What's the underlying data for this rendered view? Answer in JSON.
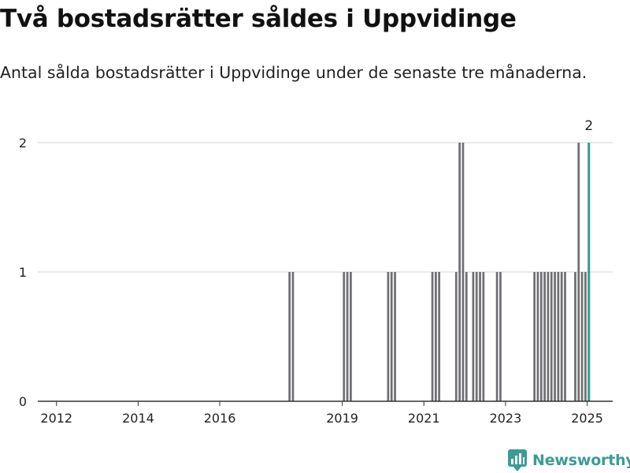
{
  "header": {
    "title": "Två bostadsrätter såldes i Uppvidinge",
    "subtitle": "Antal sålda bostadsrätter i Uppvidinge under de senaste tre månaderna."
  },
  "branding": {
    "logo_text": "Newsworthy",
    "logo_icon": "bar-chart-badge-icon",
    "logo_color": "#3a9c96"
  },
  "chart_data": {
    "type": "bar",
    "title": "Två bostadsrätter såldes i Uppvidinge",
    "subtitle": "Antal sålda bostadsrätter i Uppvidinge under de senaste tre månaderna.",
    "xlabel": "",
    "ylabel": "",
    "x_ticks": [
      "2012",
      "2014",
      "2016",
      "2019",
      "2021",
      "2023",
      "2025"
    ],
    "y_ticks": [
      0,
      1,
      2
    ],
    "ylim": [
      0,
      2
    ],
    "xlim": [
      "2011-07",
      "2025-08"
    ],
    "grid": "horizontal",
    "bar_color": "#6e6e73",
    "highlight_color": "#2a9d8f",
    "highlight_label": "2",
    "series": [
      {
        "x": [
          "2017-09",
          "2017-10",
          "2019-01",
          "2019-02",
          "2019-03",
          "2020-02",
          "2020-03",
          "2020-04",
          "2021-03",
          "2021-04",
          "2021-05",
          "2021-10",
          "2021-11",
          "2021-12",
          "2022-01",
          "2022-03",
          "2022-04",
          "2022-05",
          "2022-06",
          "2022-10",
          "2022-11",
          "2023-09",
          "2023-10",
          "2023-11",
          "2023-12",
          "2024-01",
          "2024-02",
          "2024-03",
          "2024-04",
          "2024-05",
          "2024-06",
          "2024-09",
          "2024-10",
          "2024-11",
          "2024-12",
          "2025-01"
        ],
        "values": [
          1,
          1,
          1,
          1,
          1,
          1,
          1,
          1,
          1,
          1,
          1,
          1,
          2,
          2,
          1,
          1,
          1,
          1,
          1,
          1,
          1,
          1,
          1,
          1,
          1,
          1,
          1,
          1,
          1,
          1,
          1,
          1,
          2,
          1,
          1,
          2
        ]
      }
    ]
  }
}
